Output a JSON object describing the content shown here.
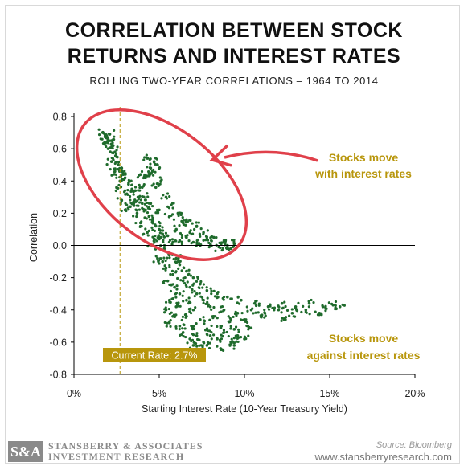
{
  "header": {
    "title_line1": "CORRELATION BETWEEN STOCK",
    "title_line2": "RETURNS AND INTEREST RATES",
    "subtitle": "ROLLING TWO-YEAR CORRELATIONS – 1964 TO 2014"
  },
  "footer": {
    "logo_mark": "S&A",
    "logo_line1": "STANSBERRY & ASSOCIATES",
    "logo_line2": "INVESTMENT RESEARCH",
    "source": "Source: Bloomberg",
    "website": "www.stansberryresearch.com"
  },
  "colors": {
    "points": "#1f6b2c",
    "circle": "#e0404a",
    "annotation": "#b8960c",
    "current_rate_box": "#b8960c"
  },
  "chart_data": {
    "type": "scatter",
    "xlabel": "Starting Interest Rate (10-Year Treasury Yield)",
    "ylabel": "Correlation",
    "xlim": [
      0,
      20
    ],
    "ylim": [
      -0.8,
      0.8
    ],
    "x_ticks": [
      "0%",
      "5%",
      "10%",
      "15%",
      "20%"
    ],
    "y_ticks": [
      "0.8",
      "0.6",
      "0.4",
      "0.2",
      "0.0",
      "-0.2",
      "-0.4",
      "-0.6",
      "-0.8"
    ],
    "grid": false,
    "current_rate": {
      "x": 2.7,
      "label": "Current Rate: 2.7%"
    },
    "annotations": [
      {
        "lines": [
          "Stocks move",
          "with interest rates"
        ]
      },
      {
        "lines": [
          "Stocks move",
          "against interest rates"
        ]
      }
    ],
    "series": [
      {
        "points": [
          [
            1.7,
            0.7
          ],
          [
            1.9,
            0.68
          ],
          [
            2.1,
            0.69
          ],
          [
            2.0,
            0.66
          ],
          [
            1.8,
            0.64
          ],
          [
            2.2,
            0.65
          ],
          [
            2.3,
            0.62
          ],
          [
            2.0,
            0.6
          ],
          [
            2.4,
            0.58
          ],
          [
            2.5,
            0.55
          ],
          [
            2.2,
            0.52
          ],
          [
            2.6,
            0.5
          ],
          [
            2.8,
            0.48
          ],
          [
            2.4,
            0.46
          ],
          [
            2.9,
            0.44
          ],
          [
            3.0,
            0.42
          ],
          [
            2.7,
            0.4
          ],
          [
            3.2,
            0.38
          ],
          [
            2.5,
            0.36
          ],
          [
            3.4,
            0.35
          ],
          [
            3.6,
            0.34
          ],
          [
            3.1,
            0.32
          ],
          [
            3.8,
            0.3
          ],
          [
            2.8,
            0.28
          ],
          [
            3.5,
            0.27
          ],
          [
            4.0,
            0.26
          ],
          [
            3.3,
            0.24
          ],
          [
            4.2,
            0.22
          ],
          [
            3.0,
            0.22
          ],
          [
            3.7,
            0.2
          ],
          [
            4.4,
            0.18
          ],
          [
            4.6,
            0.16
          ],
          [
            3.9,
            0.14
          ],
          [
            4.8,
            0.12
          ],
          [
            5.0,
            0.1
          ],
          [
            4.3,
            0.08
          ],
          [
            5.2,
            0.07
          ],
          [
            5.5,
            0.06
          ],
          [
            4.7,
            0.04
          ],
          [
            5.8,
            0.02
          ],
          [
            6.2,
            0.03
          ],
          [
            6.6,
            0.05
          ],
          [
            7.0,
            0.02
          ],
          [
            7.4,
            0.0
          ],
          [
            8.0,
            0.01
          ],
          [
            8.5,
            -0.01
          ],
          [
            9.0,
            0.0
          ],
          [
            9.2,
            -0.02
          ],
          [
            7.8,
            0.04
          ],
          [
            6.8,
            0.08
          ],
          [
            6.0,
            0.1
          ],
          [
            6.4,
            0.14
          ],
          [
            5.6,
            0.18
          ],
          [
            5.0,
            0.22
          ],
          [
            4.5,
            0.26
          ],
          [
            4.1,
            0.3
          ],
          [
            4.0,
            0.36
          ],
          [
            4.2,
            0.42
          ],
          [
            4.5,
            0.48
          ],
          [
            4.7,
            0.52
          ],
          [
            4.9,
            0.5
          ],
          [
            4.3,
            0.54
          ],
          [
            4.6,
            0.46
          ],
          [
            3.9,
            0.44
          ],
          [
            5.1,
            0.4
          ],
          [
            4.8,
            0.36
          ],
          [
            5.4,
            0.3
          ],
          [
            5.7,
            0.25
          ],
          [
            6.1,
            0.2
          ],
          [
            6.6,
            0.16
          ],
          [
            7.2,
            0.12
          ],
          [
            7.6,
            0.08
          ],
          [
            8.2,
            0.05
          ],
          [
            8.8,
            0.03
          ],
          [
            9.4,
            0.01
          ],
          [
            5.0,
            0.04
          ],
          [
            5.3,
            -0.02
          ],
          [
            5.6,
            -0.06
          ],
          [
            5.2,
            -0.1
          ],
          [
            6.0,
            -0.08
          ],
          [
            5.4,
            -0.14
          ],
          [
            6.2,
            -0.12
          ],
          [
            5.8,
            -0.18
          ],
          [
            6.6,
            -0.16
          ],
          [
            5.5,
            -0.22
          ],
          [
            6.4,
            -0.22
          ],
          [
            7.0,
            -0.2
          ],
          [
            5.9,
            -0.26
          ],
          [
            6.8,
            -0.26
          ],
          [
            7.4,
            -0.24
          ],
          [
            6.2,
            -0.3
          ],
          [
            7.2,
            -0.3
          ],
          [
            7.8,
            -0.28
          ],
          [
            5.6,
            -0.34
          ],
          [
            6.6,
            -0.34
          ],
          [
            7.6,
            -0.34
          ],
          [
            8.4,
            -0.3
          ],
          [
            9.0,
            -0.32
          ],
          [
            9.8,
            -0.34
          ],
          [
            10.6,
            -0.36
          ],
          [
            11.4,
            -0.38
          ],
          [
            12.2,
            -0.36
          ],
          [
            13.0,
            -0.38
          ],
          [
            13.8,
            -0.36
          ],
          [
            14.6,
            -0.38
          ],
          [
            15.2,
            -0.37
          ],
          [
            15.6,
            -0.38
          ],
          [
            6.0,
            -0.38
          ],
          [
            7.0,
            -0.4
          ],
          [
            8.0,
            -0.38
          ],
          [
            8.8,
            -0.4
          ],
          [
            9.6,
            -0.42
          ],
          [
            10.4,
            -0.4
          ],
          [
            11.2,
            -0.42
          ],
          [
            12.0,
            -0.4
          ],
          [
            12.8,
            -0.42
          ],
          [
            13.6,
            -0.4
          ],
          [
            14.4,
            -0.42
          ],
          [
            5.8,
            -0.44
          ],
          [
            6.6,
            -0.44
          ],
          [
            7.4,
            -0.46
          ],
          [
            8.2,
            -0.44
          ],
          [
            9.2,
            -0.46
          ],
          [
            10.0,
            -0.46
          ],
          [
            11.0,
            -0.44
          ],
          [
            12.4,
            -0.46
          ],
          [
            6.2,
            -0.5
          ],
          [
            7.0,
            -0.5
          ],
          [
            7.8,
            -0.52
          ],
          [
            8.6,
            -0.5
          ],
          [
            9.4,
            -0.52
          ],
          [
            10.2,
            -0.5
          ],
          [
            6.4,
            -0.54
          ],
          [
            7.2,
            -0.56
          ],
          [
            8.0,
            -0.56
          ],
          [
            8.8,
            -0.54
          ],
          [
            9.6,
            -0.56
          ],
          [
            6.8,
            -0.58
          ],
          [
            7.6,
            -0.6
          ],
          [
            8.4,
            -0.58
          ],
          [
            9.2,
            -0.6
          ],
          [
            10.0,
            -0.58
          ],
          [
            7.0,
            -0.62
          ],
          [
            7.8,
            -0.62
          ],
          [
            8.6,
            -0.64
          ],
          [
            9.4,
            -0.62
          ],
          [
            5.6,
            -0.48
          ],
          [
            5.4,
            -0.4
          ],
          [
            4.9,
            -0.08
          ],
          [
            4.6,
            0.0
          ]
        ]
      }
    ]
  }
}
